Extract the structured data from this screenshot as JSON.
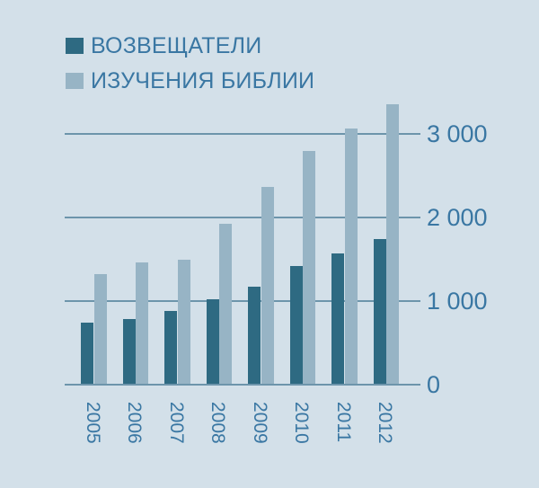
{
  "legend": {
    "items": [
      {
        "label": "ВОЗВЕЩАТЕЛИ",
        "color": "#2e6a82"
      },
      {
        "label": "ИЗУЧЕНИЯ БИБЛИИ",
        "color": "#97b4c5"
      }
    ]
  },
  "axis": {
    "y_ticks": [
      "0",
      "1 000",
      "2 000",
      "3 000"
    ],
    "x_ticks": [
      "2005",
      "2006",
      "2007",
      "2008",
      "2009",
      "2010",
      "2011",
      "2012"
    ]
  },
  "colors": {
    "background": "#d3e0e9",
    "text": "#3a77a3",
    "gridline": "#6d95ab"
  },
  "chart_data": {
    "type": "bar",
    "title": "",
    "xlabel": "",
    "ylabel": "",
    "categories": [
      "2005",
      "2006",
      "2007",
      "2008",
      "2009",
      "2010",
      "2011",
      "2012"
    ],
    "series": [
      {
        "name": "ВОЗВЕЩАТЕЛИ",
        "values": [
          730,
          775,
          870,
          1010,
          1160,
          1410,
          1560,
          1730
        ]
      },
      {
        "name": "ИЗУЧЕНИЯ БИБЛИИ",
        "values": [
          1310,
          1450,
          1480,
          1910,
          2350,
          2780,
          3050,
          3340
        ]
      }
    ],
    "ylim": [
      0,
      3400
    ],
    "yticks": [
      0,
      1000,
      2000,
      3000
    ],
    "grid": true,
    "legend_position": "top-left",
    "y_axis_side": "right"
  }
}
